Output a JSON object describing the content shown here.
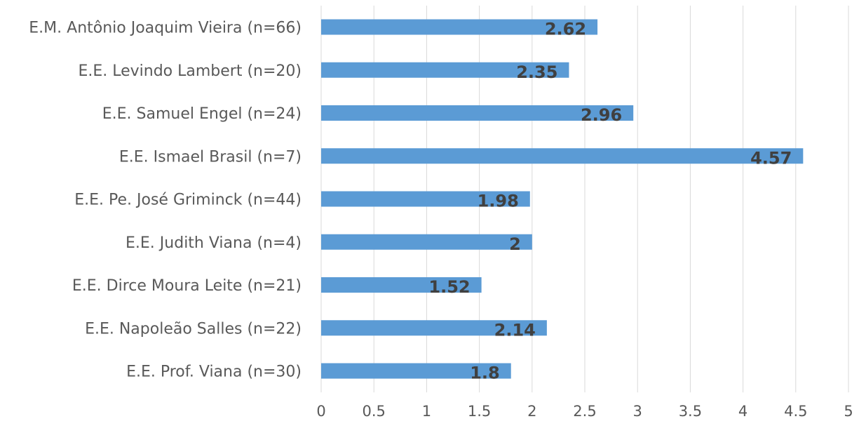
{
  "chart_data": {
    "type": "bar",
    "orientation": "horizontal",
    "categories": [
      "E.M. Antônio Joaquim Vieira (n=66)",
      "E.E. Levindo Lambert (n=20)",
      "E.E. Samuel Engel (n=24)",
      "E.E. Ismael Brasil (n=7)",
      "E.E. Pe. José Griminck (n=44)",
      "E.E. Judith Viana (n=4)",
      "E.E. Dirce Moura Leite (n=21)",
      "E.E. Napoleão Salles (n=22)",
      "E.E. Prof. Viana (n=30)"
    ],
    "values": [
      2.62,
      2.35,
      2.96,
      4.57,
      1.98,
      2,
      1.52,
      2.14,
      1.8
    ],
    "data_labels": [
      "2.62",
      "2.35",
      "2.96",
      "4.57",
      "1.98",
      "2",
      "1.52",
      "2.14",
      "1.8"
    ],
    "x_ticks": [
      "0",
      "0.5",
      "1",
      "1.5",
      "2",
      "2.5",
      "3",
      "3.5",
      "4",
      "4.5",
      "5"
    ],
    "xlim": [
      0,
      5
    ],
    "title": "",
    "xlabel": "",
    "ylabel": "",
    "grid": "vertical",
    "legend": "none",
    "colors": {
      "bar": "#5b9bd5",
      "gridline": "#d9d9d9",
      "label_text": "#595959",
      "data_label_text": "#404040"
    }
  }
}
